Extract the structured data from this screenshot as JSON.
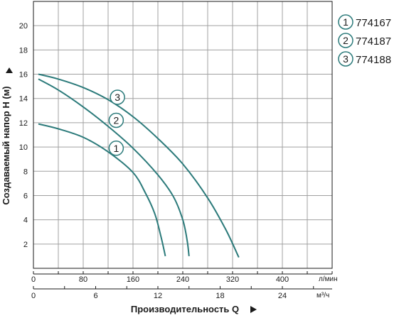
{
  "chart_data": {
    "type": "line",
    "title": "",
    "ylabel": "Создаваемый напор Н (м)",
    "xlabel": "Производительность Q",
    "ylim": [
      0,
      22
    ],
    "xlim": [
      0,
      480
    ],
    "grid": true,
    "legend_position": "right",
    "y_ticks": [
      "2",
      "4",
      "6",
      "8",
      "10",
      "12",
      "14",
      "16",
      "18",
      "20"
    ],
    "x_ticks": [
      "0",
      "80",
      "160",
      "240",
      "320",
      "400"
    ],
    "x_unit": "л/мин",
    "x2_ticks": [
      "0",
      "6",
      "12",
      "18",
      "24"
    ],
    "x2_unit": "м³/ч",
    "series": [
      {
        "name": "774167",
        "marker": "1",
        "x": [
          8,
          40,
          80,
          120,
          160,
          180,
          195,
          205,
          212
        ],
        "y": [
          11.9,
          11.5,
          10.8,
          9.6,
          7.9,
          6.2,
          4.5,
          2.6,
          1.0
        ]
      },
      {
        "name": "774187",
        "marker": "2",
        "x": [
          8,
          40,
          80,
          120,
          160,
          200,
          225,
          240,
          247,
          250
        ],
        "y": [
          15.6,
          14.7,
          13.3,
          11.7,
          9.9,
          7.7,
          5.9,
          4.0,
          2.3,
          1.0
        ]
      },
      {
        "name": "774188",
        "marker": "3",
        "x": [
          8,
          40,
          80,
          120,
          160,
          200,
          240,
          280,
          310,
          330
        ],
        "y": [
          16.0,
          15.6,
          14.9,
          13.9,
          12.5,
          10.7,
          8.6,
          5.8,
          3.1,
          0.9
        ]
      }
    ],
    "colors": {
      "line": "#2b7a7a",
      "grid": "#a0a0a0",
      "axis": "#1a1a1a"
    }
  }
}
